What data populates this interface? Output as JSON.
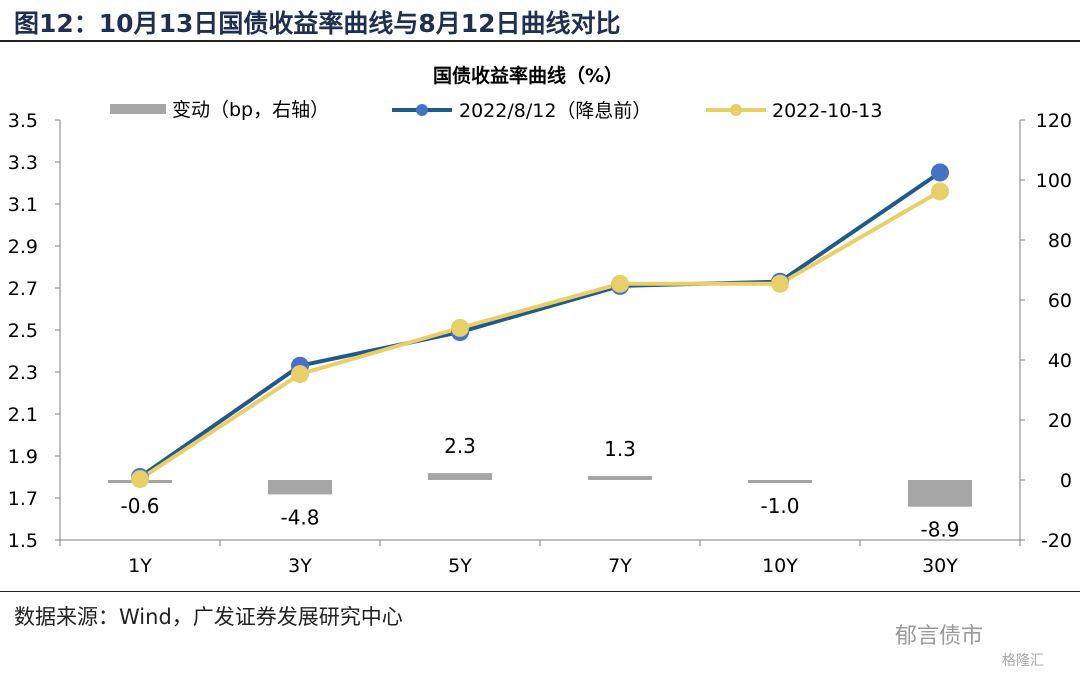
{
  "header": {
    "figure_title": "图12：10月13日国债收益率曲线与8月12日曲线对比"
  },
  "footer": {
    "source": "数据来源：Wind，广发证券发展研究中心",
    "watermark_primary": "郁言债市",
    "watermark_secondary": "格隆汇"
  },
  "chart_data": {
    "type": "line",
    "title": "国债收益率曲线（%）",
    "categories": [
      "1Y",
      "3Y",
      "5Y",
      "7Y",
      "10Y",
      "30Y"
    ],
    "y_left": {
      "ylim": [
        1.5,
        3.5
      ],
      "ticks": [
        "1.5",
        "1.7",
        "1.9",
        "2.1",
        "2.3",
        "2.5",
        "2.7",
        "2.9",
        "3.1",
        "3.3",
        "3.5"
      ]
    },
    "y_right": {
      "ylim": [
        -20,
        120
      ],
      "ticks": [
        "-20",
        "0",
        "20",
        "40",
        "60",
        "80",
        "100",
        "120"
      ]
    },
    "grid": false,
    "legend_position": "top",
    "series": [
      {
        "name": "变动（bp，右轴）",
        "kind": "bar",
        "axis": "right",
        "color": "#a6a6a6",
        "values": [
          -0.6,
          -4.8,
          2.3,
          1.3,
          -1.0,
          -8.9
        ],
        "labels": [
          "-0.6",
          "-4.8",
          "2.3",
          "1.3",
          "-1.0",
          "-8.9"
        ]
      },
      {
        "name": "2022/8/12（降息前）",
        "kind": "line",
        "axis": "left",
        "color": "#1f5a8a",
        "marker_color": "#4472c4",
        "values": [
          1.8,
          2.33,
          2.49,
          2.71,
          2.73,
          3.25
        ]
      },
      {
        "name": "2022-10-13",
        "kind": "line",
        "axis": "left",
        "color": "#e8cf6a",
        "marker_color": "#e8cf6a",
        "values": [
          1.79,
          2.29,
          2.51,
          2.72,
          2.72,
          3.16
        ]
      }
    ]
  }
}
